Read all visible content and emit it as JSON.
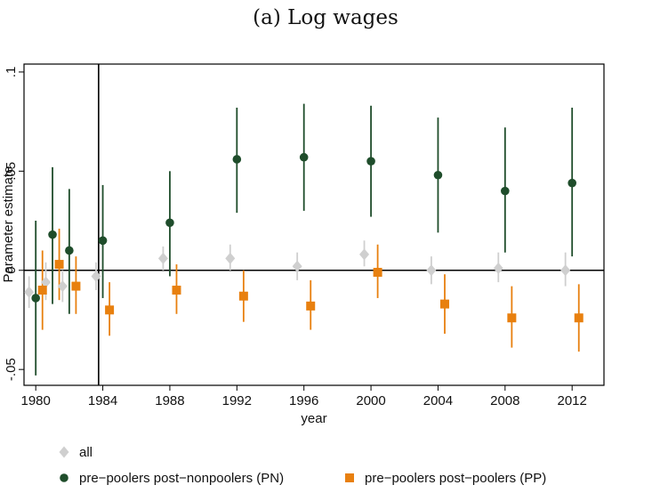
{
  "chart_data": {
    "type": "scatter",
    "title": "(a) Log wages",
    "xlabel": "year",
    "ylabel": "Parameter estimate",
    "xlim": [
      1979.3,
      2013.9
    ],
    "ylim": [
      -0.058,
      0.104
    ],
    "x_ticks": [
      1980,
      1984,
      1988,
      1992,
      1996,
      2000,
      2004,
      2008,
      2012
    ],
    "x_tick_labels": [
      "1980",
      "1984",
      "1988",
      "1992",
      "1996",
      "2000",
      "2004",
      "2008",
      "2012"
    ],
    "y_ticks": [
      -0.05,
      0,
      0.05,
      0.1
    ],
    "y_tick_labels": [
      "-.05",
      "0",
      ".05",
      ".1"
    ],
    "reference_lines": {
      "horizontal": 0,
      "vertical": 1983.75
    },
    "grid": false,
    "legend_position": "bottom",
    "series": [
      {
        "name": "all",
        "marker": "diamond",
        "color": "#cfcfcf",
        "points": [
          {
            "x": 1980,
            "y": -0.011,
            "lo": -0.019,
            "hi": -0.003
          },
          {
            "x": 1981,
            "y": -0.006,
            "lo": -0.015,
            "hi": 0.004
          },
          {
            "x": 1982,
            "y": -0.008,
            "lo": -0.016,
            "hi": 0.0
          },
          {
            "x": 1984,
            "y": -0.003,
            "lo": -0.01,
            "hi": 0.004
          },
          {
            "x": 1988,
            "y": 0.006,
            "lo": 0.0,
            "hi": 0.012
          },
          {
            "x": 1992,
            "y": 0.006,
            "lo": 0.0,
            "hi": 0.013
          },
          {
            "x": 1996,
            "y": 0.002,
            "lo": -0.005,
            "hi": 0.009
          },
          {
            "x": 2000,
            "y": 0.008,
            "lo": 0.002,
            "hi": 0.015
          },
          {
            "x": 2004,
            "y": 0.0,
            "lo": -0.007,
            "hi": 0.007
          },
          {
            "x": 2008,
            "y": 0.001,
            "lo": -0.006,
            "hi": 0.009
          },
          {
            "x": 2012,
            "y": 0.0,
            "lo": -0.008,
            "hi": 0.009
          }
        ]
      },
      {
        "name": "pre−poolers post−nonpoolers (PN)",
        "marker": "circle",
        "color": "#1f4d2b",
        "points": [
          {
            "x": 1980,
            "y": -0.014,
            "lo": -0.053,
            "hi": 0.025
          },
          {
            "x": 1981,
            "y": 0.018,
            "lo": -0.017,
            "hi": 0.052
          },
          {
            "x": 1982,
            "y": 0.01,
            "lo": -0.022,
            "hi": 0.041
          },
          {
            "x": 1984,
            "y": 0.015,
            "lo": -0.014,
            "hi": 0.043
          },
          {
            "x": 1988,
            "y": 0.024,
            "lo": -0.003,
            "hi": 0.05
          },
          {
            "x": 1992,
            "y": 0.056,
            "lo": 0.029,
            "hi": 0.082
          },
          {
            "x": 1996,
            "y": 0.057,
            "lo": 0.03,
            "hi": 0.084
          },
          {
            "x": 2000,
            "y": 0.055,
            "lo": 0.027,
            "hi": 0.083
          },
          {
            "x": 2004,
            "y": 0.048,
            "lo": 0.019,
            "hi": 0.077
          },
          {
            "x": 2008,
            "y": 0.04,
            "lo": 0.009,
            "hi": 0.072
          },
          {
            "x": 2012,
            "y": 0.044,
            "lo": 0.007,
            "hi": 0.082
          }
        ]
      },
      {
        "name": "pre−poolers post−poolers (PP)",
        "marker": "square",
        "color": "#e8800f",
        "points": [
          {
            "x": 1980,
            "y": -0.01,
            "lo": -0.03,
            "hi": 0.01
          },
          {
            "x": 1981,
            "y": 0.003,
            "lo": -0.015,
            "hi": 0.021
          },
          {
            "x": 1982,
            "y": -0.008,
            "lo": -0.022,
            "hi": 0.007
          },
          {
            "x": 1984,
            "y": -0.02,
            "lo": -0.033,
            "hi": -0.006
          },
          {
            "x": 1988,
            "y": -0.01,
            "lo": -0.022,
            "hi": 0.003
          },
          {
            "x": 1992,
            "y": -0.013,
            "lo": -0.026,
            "hi": 0.0
          },
          {
            "x": 1996,
            "y": -0.018,
            "lo": -0.03,
            "hi": -0.005
          },
          {
            "x": 2000,
            "y": -0.001,
            "lo": -0.014,
            "hi": 0.013
          },
          {
            "x": 2004,
            "y": -0.017,
            "lo": -0.032,
            "hi": -0.002
          },
          {
            "x": 2008,
            "y": -0.024,
            "lo": -0.039,
            "hi": -0.008
          },
          {
            "x": 2012,
            "y": -0.024,
            "lo": -0.041,
            "hi": -0.007
          }
        ]
      }
    ]
  }
}
